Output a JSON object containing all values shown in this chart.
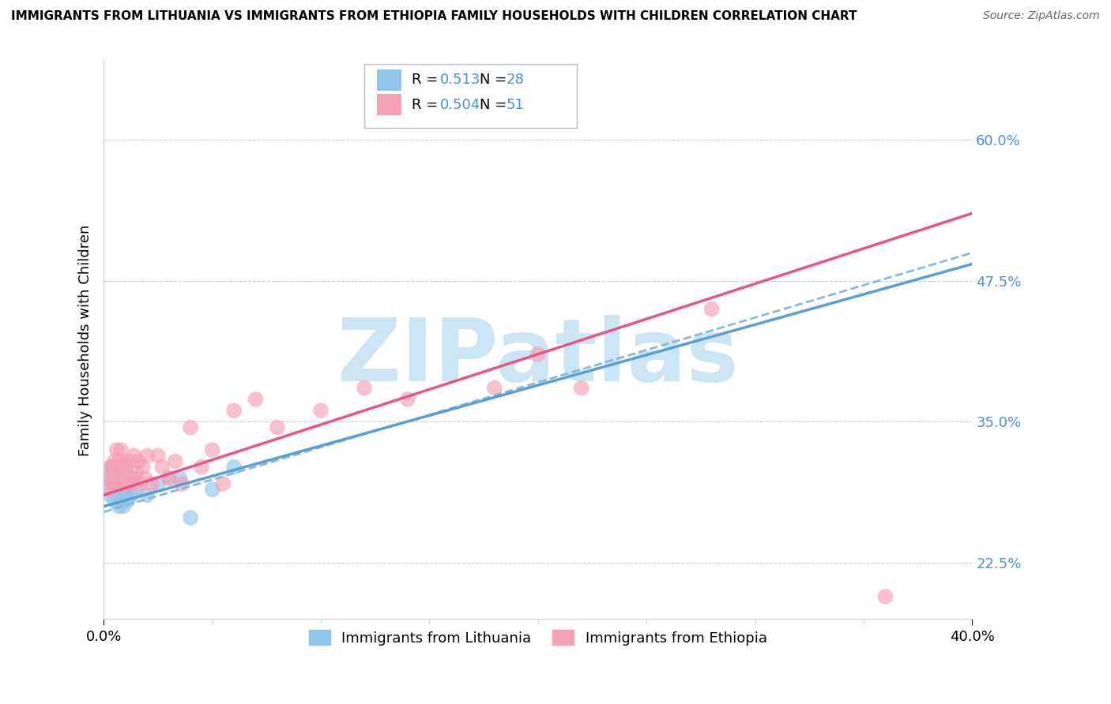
{
  "title": "IMMIGRANTS FROM LITHUANIA VS IMMIGRANTS FROM ETHIOPIA FAMILY HOUSEHOLDS WITH CHILDREN CORRELATION CHART",
  "source": "Source: ZipAtlas.com",
  "ylabel": "Family Households with Children",
  "ytick_labels": [
    "22.5%",
    "35.0%",
    "47.5%",
    "60.0%"
  ],
  "ytick_values": [
    0.225,
    0.35,
    0.475,
    0.6
  ],
  "xtick_labels": [
    "0.0%",
    "40.0%"
  ],
  "xtick_values": [
    0.0,
    0.4
  ],
  "xlim": [
    0.0,
    0.4
  ],
  "ylim": [
    0.175,
    0.67
  ],
  "R_lithuania": 0.513,
  "N_lithuania": 28,
  "R_ethiopia": 0.504,
  "N_ethiopia": 51,
  "color_lithuania": "#90c4e8",
  "color_ethiopia": "#f4a0b5",
  "color_line_lithuania": "#5a9fd4",
  "color_line_ethiopia": "#e85585",
  "color_line_dashed": "#8ab8d8",
  "watermark_text": "ZIPatlas",
  "watermark_color": "#cce5f5",
  "legend_label_lithuania": "Immigrants from Lithuania",
  "legend_label_ethiopia": "Immigrants from Ethiopia",
  "lith_line_x0": 0.0,
  "lith_line_y0": 0.27,
  "lith_line_x1": 0.4,
  "lith_line_y1": 0.5,
  "eth_line_x0": 0.0,
  "eth_line_y0": 0.285,
  "eth_line_x1": 0.4,
  "eth_line_y1": 0.535,
  "dash_line_x0": 0.0,
  "dash_line_y0": 0.275,
  "dash_line_x1": 0.4,
  "dash_line_y1": 0.49,
  "lithuania_x": [
    0.002,
    0.003,
    0.004,
    0.004,
    0.005,
    0.005,
    0.006,
    0.006,
    0.007,
    0.007,
    0.008,
    0.008,
    0.009,
    0.009,
    0.01,
    0.01,
    0.011,
    0.012,
    0.013,
    0.014,
    0.015,
    0.02,
    0.025,
    0.03,
    0.035,
    0.04,
    0.05,
    0.06
  ],
  "lithuania_y": [
    0.3,
    0.285,
    0.31,
    0.295,
    0.295,
    0.28,
    0.305,
    0.29,
    0.3,
    0.275,
    0.28,
    0.295,
    0.29,
    0.275,
    0.285,
    0.31,
    0.28,
    0.295,
    0.285,
    0.3,
    0.29,
    0.285,
    0.295,
    0.3,
    0.3,
    0.265,
    0.29,
    0.31
  ],
  "ethiopia_x": [
    0.002,
    0.003,
    0.003,
    0.004,
    0.004,
    0.005,
    0.005,
    0.006,
    0.006,
    0.006,
    0.007,
    0.007,
    0.008,
    0.008,
    0.008,
    0.009,
    0.009,
    0.01,
    0.01,
    0.011,
    0.012,
    0.013,
    0.013,
    0.014,
    0.015,
    0.016,
    0.017,
    0.018,
    0.019,
    0.02,
    0.022,
    0.025,
    0.027,
    0.03,
    0.033,
    0.036,
    0.04,
    0.045,
    0.05,
    0.055,
    0.06,
    0.07,
    0.08,
    0.1,
    0.12,
    0.14,
    0.18,
    0.2,
    0.22,
    0.28,
    0.36
  ],
  "ethiopia_y": [
    0.29,
    0.3,
    0.31,
    0.295,
    0.31,
    0.3,
    0.315,
    0.295,
    0.31,
    0.325,
    0.3,
    0.315,
    0.295,
    0.31,
    0.325,
    0.3,
    0.315,
    0.295,
    0.31,
    0.295,
    0.315,
    0.3,
    0.295,
    0.32,
    0.305,
    0.315,
    0.295,
    0.31,
    0.3,
    0.32,
    0.295,
    0.32,
    0.31,
    0.3,
    0.315,
    0.295,
    0.345,
    0.31,
    0.325,
    0.295,
    0.36,
    0.37,
    0.345,
    0.36,
    0.38,
    0.37,
    0.38,
    0.41,
    0.38,
    0.45,
    0.195
  ]
}
